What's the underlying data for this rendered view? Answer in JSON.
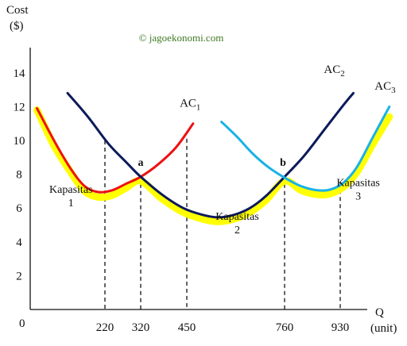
{
  "chart_data": {
    "type": "line",
    "y_axis_title_line1": "Cost",
    "y_axis_title_line2": "($)",
    "x_axis_title_line1": "Q",
    "x_axis_title_line2": "(unit)",
    "watermark": "© jagoekonomi.com",
    "origin_label": "0",
    "ylim": [
      0,
      15
    ],
    "yticks": [
      2,
      4,
      6,
      8,
      10,
      12,
      14
    ],
    "xticks": [
      220,
      320,
      450,
      760,
      930
    ],
    "grid": false,
    "colors": {
      "ac1": "#ee1111",
      "ac2": "#0c1a5a",
      "ac3": "#19b2e6",
      "lrac": "#ffff00",
      "axis": "#111111"
    },
    "series": [
      {
        "name": "AC1",
        "key": "ac1",
        "points": [
          [
            20,
            11.9
          ],
          [
            70,
            10.0
          ],
          [
            120,
            8.3
          ],
          [
            160,
            7.3
          ],
          [
            200,
            6.95
          ],
          [
            240,
            7.05
          ],
          [
            280,
            7.45
          ],
          [
            320,
            7.85
          ],
          [
            370,
            8.6
          ],
          [
            420,
            9.6
          ],
          [
            470,
            11.0
          ]
        ]
      },
      {
        "name": "AC2",
        "key": "ac2",
        "points": [
          [
            110,
            12.8
          ],
          [
            170,
            11.4
          ],
          [
            230,
            9.8
          ],
          [
            280,
            8.7
          ],
          [
            320,
            7.85
          ],
          [
            380,
            6.8
          ],
          [
            440,
            6.0
          ],
          [
            500,
            5.6
          ],
          [
            550,
            5.45
          ],
          [
            600,
            5.6
          ],
          [
            650,
            6.0
          ],
          [
            700,
            6.7
          ],
          [
            760,
            7.85
          ],
          [
            820,
            9.1
          ],
          [
            880,
            10.6
          ],
          [
            940,
            12.1
          ],
          [
            970,
            12.8
          ]
        ]
      },
      {
        "name": "AC3",
        "key": "ac3",
        "points": [
          [
            560,
            11.1
          ],
          [
            610,
            10.2
          ],
          [
            660,
            9.2
          ],
          [
            710,
            8.4
          ],
          [
            760,
            7.8
          ],
          [
            810,
            7.3
          ],
          [
            860,
            7.05
          ],
          [
            900,
            7.1
          ],
          [
            940,
            7.5
          ],
          [
            980,
            8.4
          ],
          [
            1030,
            10.2
          ],
          [
            1080,
            12.0
          ]
        ]
      }
    ],
    "lrac_points": [
      [
        20,
        11.8
      ],
      [
        70,
        9.7
      ],
      [
        120,
        8.1
      ],
      [
        160,
        7.0
      ],
      [
        200,
        6.65
      ],
      [
        240,
        6.75
      ],
      [
        280,
        7.2
      ],
      [
        320,
        7.6
      ],
      [
        380,
        6.55
      ],
      [
        440,
        5.75
      ],
      [
        500,
        5.35
      ],
      [
        550,
        5.2
      ],
      [
        600,
        5.35
      ],
      [
        650,
        5.75
      ],
      [
        700,
        6.45
      ],
      [
        760,
        7.6
      ],
      [
        810,
        7.05
      ],
      [
        860,
        6.8
      ],
      [
        900,
        6.85
      ],
      [
        940,
        7.25
      ],
      [
        980,
        8.1
      ],
      [
        1030,
        9.8
      ],
      [
        1080,
        11.4
      ]
    ],
    "drop_lines": [
      {
        "x": 220,
        "y": 10.0
      },
      {
        "x": 320,
        "y": 7.85
      },
      {
        "x": 450,
        "y": 10.1
      },
      {
        "x": 760,
        "y": 7.85
      },
      {
        "x": 930,
        "y": 7.5
      }
    ],
    "curve_labels": [
      {
        "main": "AC",
        "sub": "1",
        "x": 430,
        "y": 12.0
      },
      {
        "main": "AC",
        "sub": "2",
        "x": 880,
        "y": 14.0
      },
      {
        "main": "AC",
        "sub": "3",
        "x": 1035,
        "y": 13.0
      }
    ],
    "points_labels": [
      {
        "text": "a",
        "x": 320,
        "y": 8.5
      },
      {
        "text": "b",
        "x": 755,
        "y": 8.5
      }
    ],
    "annotations": [
      {
        "line1": "Kapasitas",
        "line2": "1",
        "x": 120,
        "y": 6.9
      },
      {
        "line1": "Kapasitas",
        "line2": "2",
        "x": 610,
        "y": 5.3
      },
      {
        "line1": "Kapasitas",
        "line2": "3",
        "x": 985,
        "y": 7.3
      }
    ]
  }
}
